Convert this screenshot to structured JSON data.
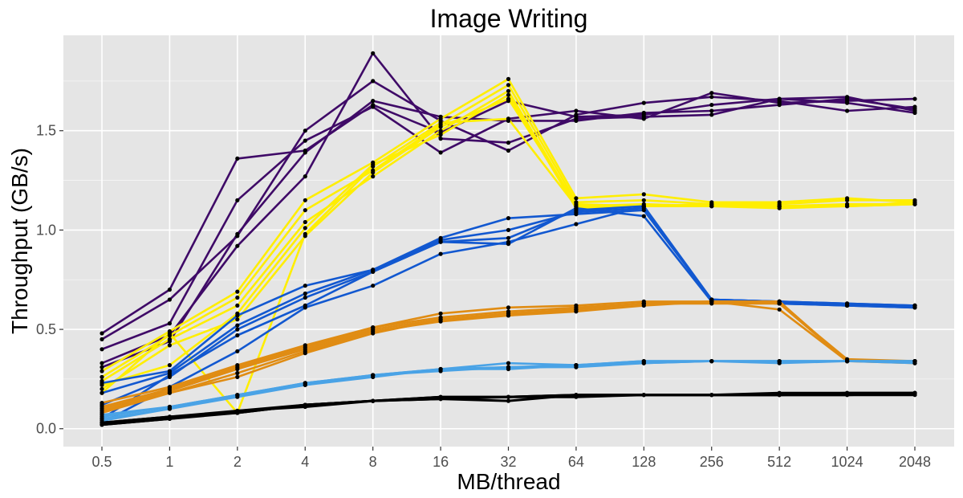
{
  "chart_data": {
    "type": "line",
    "title": "Image Writing",
    "xlabel": "MB/thread",
    "ylabel": "Throughput (GB/s)",
    "x": [
      "0.5",
      "1",
      "2",
      "4",
      "8",
      "16",
      "32",
      "64",
      "128",
      "256",
      "512",
      "1024",
      "2048"
    ],
    "x_scale": "log2",
    "yticks": [
      "0.0",
      "0.5",
      "1.0",
      "1.5"
    ],
    "ylim": [
      -0.09,
      1.98
    ],
    "grid": true,
    "legend": "none",
    "colors": {
      "panel": "#e5e5e5",
      "grid_major": "#ffffff",
      "point": "#000000"
    },
    "series": [
      {
        "color": "#3f0a67",
        "values": [
          0.48,
          0.7,
          1.36,
          1.4,
          1.63,
          1.49,
          1.65,
          1.57,
          1.58,
          1.63,
          1.66,
          1.67,
          1.6
        ]
      },
      {
        "color": "#3f0a67",
        "values": [
          0.45,
          0.65,
          0.97,
          1.5,
          1.75,
          1.55,
          1.4,
          1.58,
          1.64,
          1.67,
          1.65,
          1.6,
          1.62
        ]
      },
      {
        "color": "#3f0a67",
        "values": [
          0.4,
          0.53,
          1.15,
          1.45,
          1.62,
          1.39,
          1.56,
          1.6,
          1.56,
          1.69,
          1.64,
          1.65,
          1.66
        ]
      },
      {
        "color": "#3f0a67",
        "values": [
          0.33,
          0.47,
          0.92,
          1.27,
          1.89,
          1.46,
          1.44,
          1.56,
          1.57,
          1.58,
          1.66,
          1.64,
          1.59
        ]
      },
      {
        "color": "#3f0a67",
        "values": [
          0.31,
          0.44,
          0.98,
          1.39,
          1.65,
          1.57,
          1.55,
          1.55,
          1.59,
          1.6,
          1.63,
          1.66,
          1.61
        ]
      },
      {
        "color": "#ffee00",
        "values": [
          0.29,
          0.49,
          0.69,
          1.15,
          1.34,
          1.56,
          1.76,
          1.16,
          1.18,
          1.14,
          1.14,
          1.16,
          1.14
        ]
      },
      {
        "color": "#ffee00",
        "values": [
          0.26,
          0.47,
          0.66,
          1.1,
          1.3,
          1.53,
          1.73,
          1.14,
          1.15,
          1.13,
          1.13,
          1.15,
          1.15
        ]
      },
      {
        "color": "#ffee00",
        "values": [
          0.24,
          0.45,
          0.62,
          1.04,
          1.27,
          1.5,
          1.7,
          1.12,
          1.13,
          1.12,
          1.12,
          1.13,
          1.13
        ]
      },
      {
        "color": "#ffee00",
        "values": [
          0.22,
          0.32,
          0.58,
          1.01,
          1.33,
          1.48,
          1.68,
          1.11,
          1.12,
          1.12,
          1.11,
          1.12,
          1.13
        ]
      },
      {
        "color": "#ffee00",
        "values": [
          0.2,
          0.42,
          0.55,
          0.97,
          1.29,
          1.52,
          1.66,
          1.13,
          1.12,
          1.13,
          1.12,
          1.12,
          1.14
        ]
      },
      {
        "color": "#ffee00",
        "values": [
          0.18,
          0.48,
          0.08,
          0.98,
          1.32,
          1.54,
          1.56,
          1.12,
          1.12,
          1.12,
          1.12,
          1.12,
          1.13
        ]
      },
      {
        "color": "#1258d0",
        "values": [
          0.23,
          0.29,
          0.57,
          0.72,
          0.8,
          0.96,
          1.06,
          1.08,
          1.1,
          0.65,
          0.64,
          0.63,
          0.62
        ]
      },
      {
        "color": "#1258d0",
        "values": [
          0.18,
          0.28,
          0.52,
          0.68,
          0.8,
          0.95,
          1.0,
          1.09,
          1.11,
          0.65,
          0.64,
          0.63,
          0.62
        ]
      },
      {
        "color": "#1258d0",
        "values": [
          0.12,
          0.26,
          0.5,
          0.66,
          0.79,
          0.94,
          0.96,
          1.1,
          1.12,
          0.65,
          0.64,
          0.62,
          0.62
        ]
      },
      {
        "color": "#1258d0",
        "values": [
          0.05,
          0.27,
          0.47,
          0.62,
          0.79,
          0.94,
          0.93,
          1.11,
          1.07,
          0.64,
          0.63,
          0.62,
          0.61
        ]
      },
      {
        "color": "#1258d0",
        "values": [
          0.03,
          0.21,
          0.39,
          0.61,
          0.72,
          0.88,
          0.94,
          1.03,
          1.12,
          0.64,
          0.63,
          0.62,
          0.61
        ]
      },
      {
        "color": "#e08c13",
        "values": [
          0.13,
          0.21,
          0.32,
          0.42,
          0.51,
          0.58,
          0.61,
          0.62,
          0.64,
          0.64,
          0.63,
          0.35,
          0.34
        ]
      },
      {
        "color": "#e08c13",
        "values": [
          0.11,
          0.2,
          0.31,
          0.41,
          0.51,
          0.56,
          0.59,
          0.61,
          0.63,
          0.64,
          0.64,
          0.34,
          0.34
        ]
      },
      {
        "color": "#e08c13",
        "values": [
          0.1,
          0.19,
          0.3,
          0.4,
          0.5,
          0.55,
          0.58,
          0.6,
          0.63,
          0.64,
          0.64,
          0.34,
          0.34
        ]
      },
      {
        "color": "#e08c13",
        "values": [
          0.09,
          0.18,
          0.28,
          0.39,
          0.49,
          0.54,
          0.57,
          0.6,
          0.63,
          0.63,
          0.63,
          0.34,
          0.34
        ]
      },
      {
        "color": "#e08c13",
        "values": [
          0.08,
          0.18,
          0.26,
          0.38,
          0.48,
          0.55,
          0.57,
          0.59,
          0.62,
          0.64,
          0.6,
          0.34,
          0.33
        ]
      },
      {
        "color": "#4aa3e6",
        "values": [
          0.07,
          0.11,
          0.17,
          0.23,
          0.27,
          0.3,
          0.33,
          0.32,
          0.34,
          0.34,
          0.34,
          0.34,
          0.34
        ]
      },
      {
        "color": "#4aa3e6",
        "values": [
          0.06,
          0.11,
          0.17,
          0.23,
          0.27,
          0.29,
          0.31,
          0.32,
          0.33,
          0.34,
          0.34,
          0.34,
          0.34
        ]
      },
      {
        "color": "#4aa3e6",
        "values": [
          0.05,
          0.1,
          0.16,
          0.22,
          0.26,
          0.3,
          0.31,
          0.31,
          0.33,
          0.34,
          0.33,
          0.34,
          0.34
        ]
      },
      {
        "color": "#4aa3e6",
        "values": [
          0.04,
          0.1,
          0.17,
          0.22,
          0.27,
          0.3,
          0.3,
          0.32,
          0.34,
          0.34,
          0.34,
          0.34,
          0.33
        ]
      },
      {
        "color": "#000000",
        "values": [
          0.03,
          0.06,
          0.09,
          0.12,
          0.14,
          0.15,
          0.16,
          0.17,
          0.17,
          0.17,
          0.17,
          0.18,
          0.18
        ]
      },
      {
        "color": "#000000",
        "values": [
          0.02,
          0.05,
          0.09,
          0.11,
          0.14,
          0.16,
          0.16,
          0.17,
          0.17,
          0.17,
          0.17,
          0.17,
          0.18
        ]
      },
      {
        "color": "#000000",
        "values": [
          0.02,
          0.05,
          0.08,
          0.12,
          0.14,
          0.15,
          0.14,
          0.17,
          0.17,
          0.17,
          0.17,
          0.17,
          0.17
        ]
      },
      {
        "color": "#000000",
        "values": [
          0.03,
          0.06,
          0.08,
          0.12,
          0.14,
          0.16,
          0.16,
          0.16,
          0.17,
          0.17,
          0.18,
          0.18,
          0.18
        ]
      }
    ]
  }
}
